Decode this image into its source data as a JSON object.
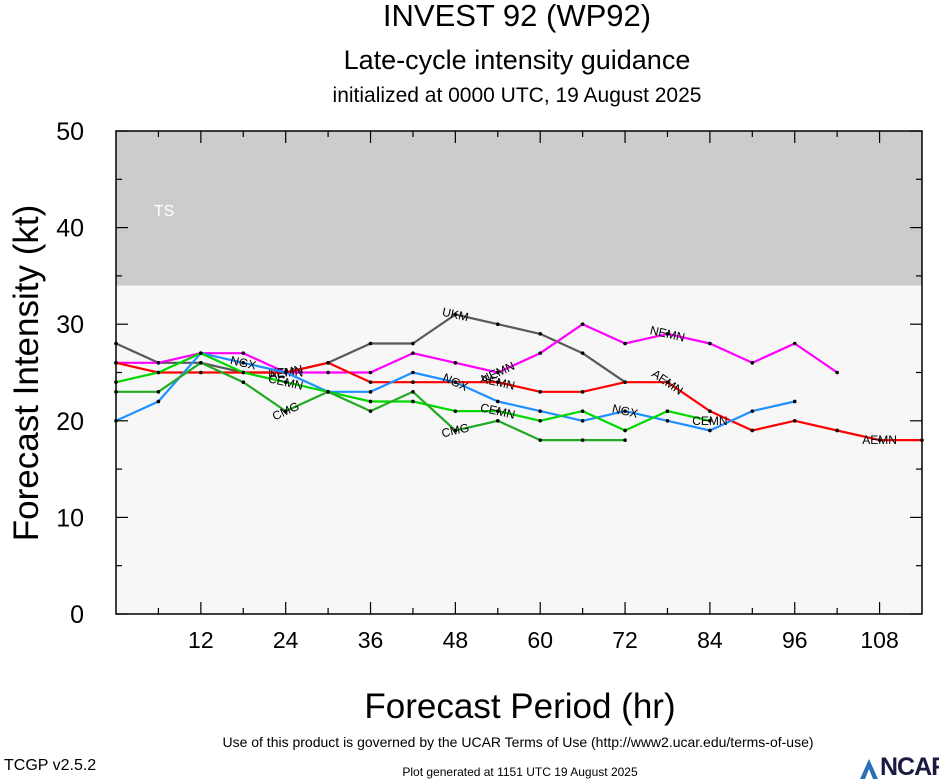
{
  "header": {
    "title": "INVEST 92 (WP92)",
    "subtitle": "Late-cycle intensity guidance",
    "init": "initialized at 0000 UTC, 19 August 2025"
  },
  "footer": {
    "terms": "Use of this product is governed by the UCAR Terms of Use (http://www2.ucar.edu/terms-of-use)",
    "version": "TCGP v2.5.2",
    "generated": "Plot generated at 1151 UTC   19 August 2025",
    "logo": "NCAR"
  },
  "colors": {
    "ts_band": "#cccccc",
    "plot_bg": "#f7f7f7",
    "UKM": "#595959",
    "NEMN": "#ff00ff",
    "AEMN": "#ff0000",
    "NGX": "#1e90ff",
    "CEMN": "#00d800",
    "CMG": "#22aa22"
  },
  "chart_data": {
    "type": "line",
    "xlabel": "Forecast Period (hr)",
    "ylabel": "Forecast Intensity (kt)",
    "xlim": [
      0,
      114
    ],
    "ylim": [
      0,
      50
    ],
    "xticks": [
      12,
      24,
      36,
      48,
      60,
      72,
      84,
      96,
      108
    ],
    "yticks": [
      0,
      10,
      20,
      30,
      40,
      50
    ],
    "grid": false,
    "bands": [
      {
        "label": "TS",
        "from": 34,
        "to": 50
      }
    ],
    "series": [
      {
        "name": "UKM",
        "color": "#595959",
        "x": [
          0,
          6,
          12,
          18,
          24,
          30,
          36,
          42,
          48,
          54,
          60,
          66,
          72
        ],
        "y": [
          28,
          26,
          26,
          25,
          25,
          26,
          28,
          28,
          31,
          30,
          29,
          27,
          24
        ],
        "labels_at": [
          48
        ]
      },
      {
        "name": "NEMN",
        "color": "#ff00ff",
        "x": [
          0,
          6,
          12,
          18,
          24,
          30,
          36,
          42,
          48,
          54,
          60,
          66,
          72,
          78,
          84,
          90,
          96,
          102
        ],
        "y": [
          26,
          26,
          27,
          27,
          25,
          25,
          25,
          27,
          26,
          25,
          27,
          30,
          28,
          29,
          28,
          26,
          28,
          25
        ],
        "labels_at": [
          24,
          54,
          78
        ]
      },
      {
        "name": "AEMN",
        "color": "#ff0000",
        "x": [
          0,
          6,
          12,
          18,
          24,
          30,
          36,
          42,
          48,
          54,
          60,
          66,
          72,
          78,
          84,
          90,
          96,
          102,
          108,
          114
        ],
        "y": [
          26,
          25,
          25,
          25,
          25,
          26,
          24,
          24,
          24,
          24,
          23,
          23,
          24,
          24,
          21,
          19,
          20,
          19,
          18,
          18
        ],
        "labels_at": [
          24,
          54,
          78,
          108
        ]
      },
      {
        "name": "NGX",
        "color": "#1e90ff",
        "x": [
          0,
          6,
          12,
          18,
          24,
          30,
          36,
          42,
          48,
          54,
          60,
          66,
          72,
          78,
          84,
          90,
          96
        ],
        "y": [
          20,
          22,
          27,
          26,
          25,
          23,
          23,
          25,
          24,
          22,
          21,
          20,
          21,
          20,
          19,
          21,
          22
        ],
        "labels_at": [
          18,
          48,
          72
        ]
      },
      {
        "name": "CEMN",
        "color": "#00d800",
        "x": [
          0,
          6,
          12,
          18,
          24,
          30,
          36,
          42,
          48,
          54,
          60,
          66,
          72,
          78,
          84
        ],
        "y": [
          24,
          25,
          27,
          25,
          24,
          23,
          22,
          22,
          21,
          21,
          20,
          21,
          19,
          21,
          20
        ],
        "labels_at": [
          24,
          54,
          84
        ]
      },
      {
        "name": "CMG",
        "color": "#22aa22",
        "x": [
          0,
          6,
          12,
          18,
          24,
          30,
          36,
          42,
          48,
          54,
          60,
          66,
          72
        ],
        "y": [
          23,
          23,
          26,
          24,
          21,
          23,
          21,
          23,
          19,
          20,
          18,
          18,
          18
        ],
        "labels_at": [
          24,
          48
        ]
      }
    ]
  }
}
